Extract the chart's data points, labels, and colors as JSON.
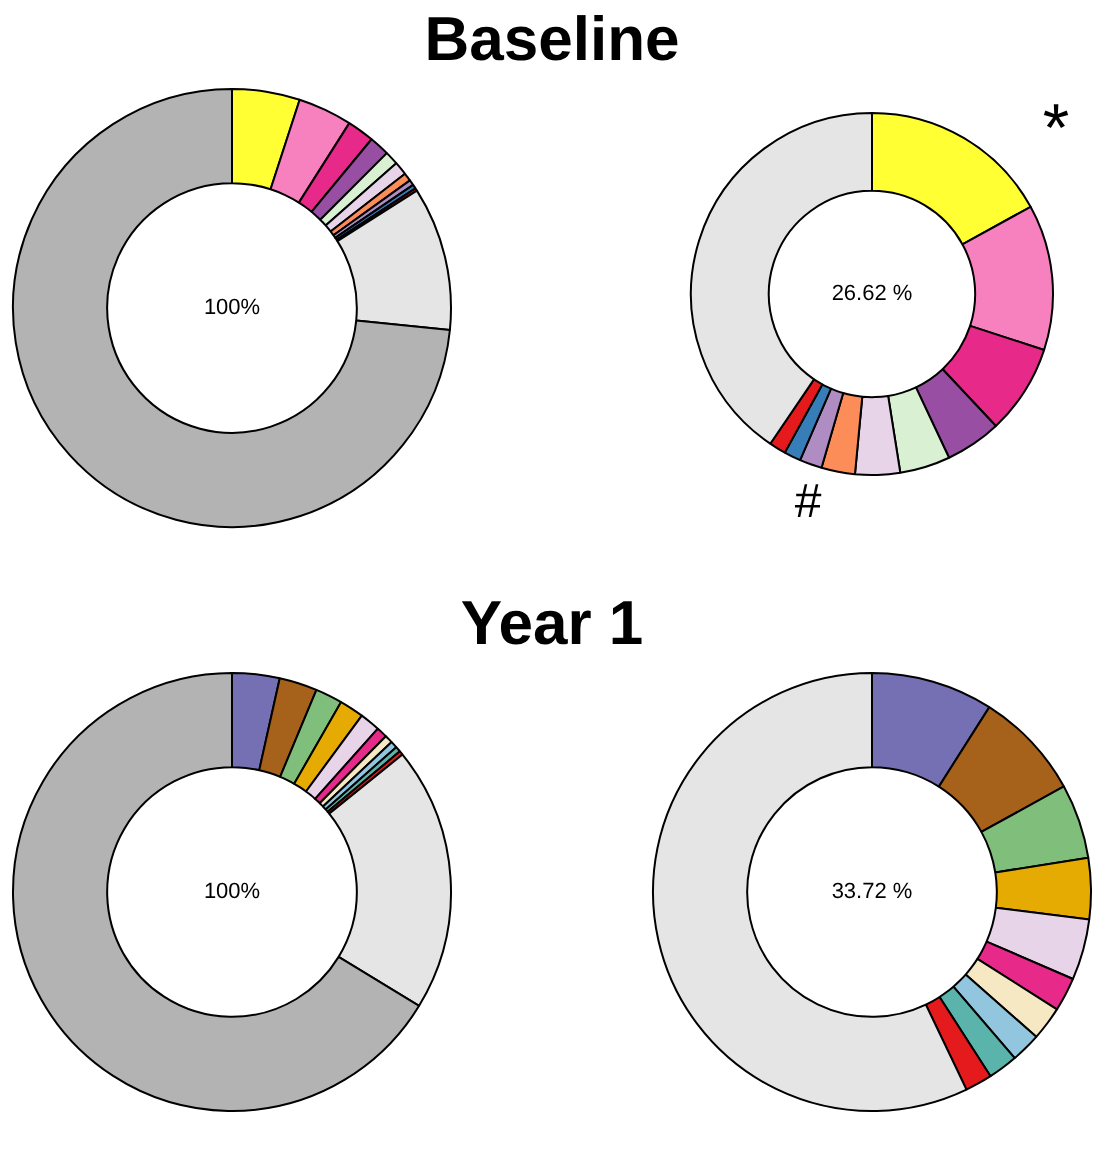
{
  "chart_data": [
    {
      "type": "donut",
      "title": "Baseline",
      "categories": [
        null,
        null,
        null,
        null,
        null,
        null,
        null,
        null,
        null,
        null,
        null,
        null
      ],
      "values": [
        5,
        4,
        2,
        1.5,
        1,
        1,
        0.6,
        0.4,
        0.3,
        0.2,
        10.6,
        73.4
      ],
      "colors": [
        "#ffff33",
        "#f781bf",
        "#e7298a",
        "#984ea3",
        "#d9f0d3",
        "#e7d4e8",
        "#fc8d59",
        "#af8dc3",
        "#377eb8",
        "#e41a1c",
        "#e5e5e5",
        "#b3b3b3"
      ],
      "annotations": [
        "100%"
      ],
      "legend": false
    },
    {
      "type": "donut",
      "categories": [
        null,
        null,
        null,
        null,
        null,
        null,
        null,
        null,
        null,
        null,
        null
      ],
      "values": [
        17,
        13,
        8,
        5,
        4.5,
        4,
        3,
        2,
        1.5,
        1.5,
        40.5
      ],
      "colors": [
        "#ffff33",
        "#f781bf",
        "#e7298a",
        "#984ea3",
        "#d9f0d3",
        "#e7d4e8",
        "#fc8d59",
        "#af8dc3",
        "#377eb8",
        "#e41a1c",
        "#e5e5e5"
      ],
      "annotations": [
        "26.62 %",
        "*",
        "#"
      ],
      "legend": false
    },
    {
      "type": "donut",
      "title": "Year 1",
      "categories": [
        null,
        null,
        null,
        null,
        null,
        null,
        null,
        null,
        null,
        null,
        null,
        null
      ],
      "values": [
        3.5,
        2.8,
        2,
        1.8,
        1.5,
        0.8,
        0.6,
        0.5,
        0.4,
        0.3,
        19.5,
        66.3
      ],
      "colors": [
        "#7570b3",
        "#a6611a",
        "#7fbf7b",
        "#e6ab02",
        "#e7d4e8",
        "#e7298a",
        "#f6e8c3",
        "#92c5de",
        "#5ab4ac",
        "#e41a1c",
        "#e5e5e5",
        "#b3b3b3"
      ],
      "annotations": [
        "100%"
      ],
      "legend": false
    },
    {
      "type": "donut",
      "categories": [
        null,
        null,
        null,
        null,
        null,
        null,
        null,
        null,
        null,
        null,
        null
      ],
      "values": [
        9,
        8,
        5.5,
        4.5,
        4.5,
        2.5,
        2.5,
        2.2,
        2.2,
        2,
        57.1
      ],
      "colors": [
        "#7570b3",
        "#a6611a",
        "#7fbf7b",
        "#e6ab02",
        "#e7d4e8",
        "#e7298a",
        "#f6e8c3",
        "#92c5de",
        "#5ab4ac",
        "#e41a1c",
        "#e5e5e5"
      ],
      "annotations": [
        "33.72 %"
      ],
      "legend": false
    }
  ]
}
